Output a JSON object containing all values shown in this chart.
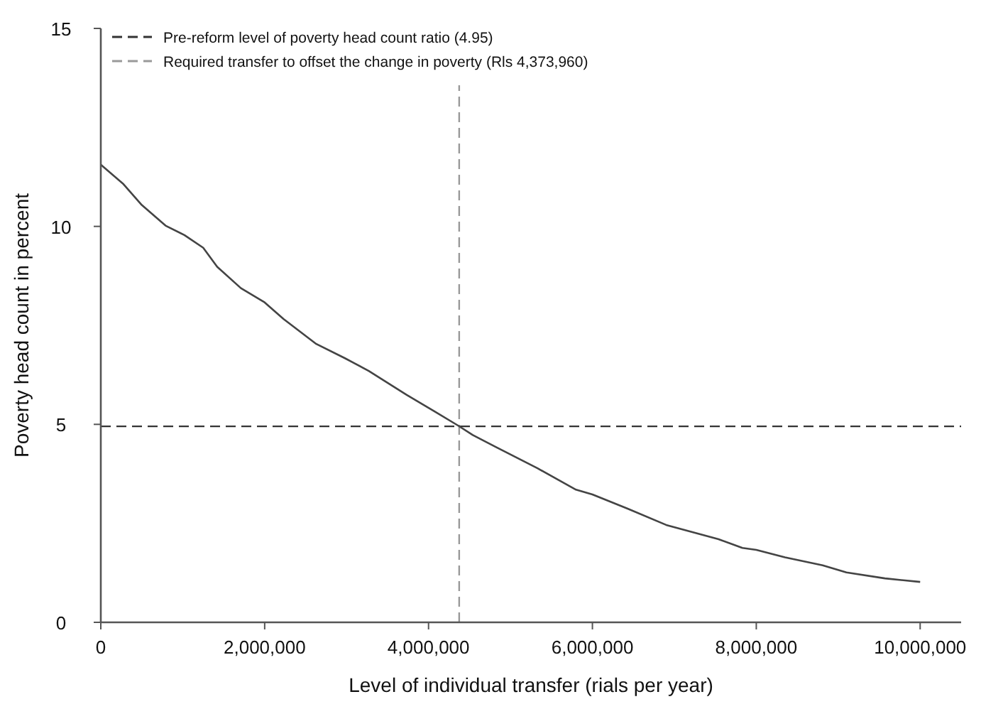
{
  "chart_data": {
    "type": "line",
    "xlabel": "Level of individual transfer (rials per year)",
    "ylabel": "Poverty head count in percent",
    "x": [
      0,
      270000,
      500000,
      790000,
      1020000,
      1250000,
      1420000,
      1710000,
      2000000,
      2230000,
      2630000,
      2980000,
      3270000,
      3730000,
      4070000,
      4360000,
      4540000,
      4820000,
      5330000,
      5800000,
      6000000,
      6430000,
      6900000,
      7540000,
      7830000,
      8000000,
      8350000,
      8810000,
      9100000,
      9570000,
      10000000
    ],
    "series": [
      {
        "color": "#444444",
        "values": [
          11.56,
          11.08,
          10.54,
          10.02,
          9.78,
          9.46,
          8.98,
          8.44,
          8.08,
          7.66,
          7.03,
          6.67,
          6.35,
          5.75,
          5.33,
          4.97,
          4.73,
          4.43,
          3.89,
          3.35,
          3.23,
          2.87,
          2.46,
          2.1,
          1.88,
          1.83,
          1.64,
          1.44,
          1.26,
          1.11,
          1.02
        ]
      }
    ],
    "xlim": [
      0,
      10500000
    ],
    "ylim": [
      0,
      15
    ],
    "xticks": [
      0,
      {
        "value": 2000000,
        "label": "2,000,000"
      },
      {
        "value": 4000000,
        "label": "4,000,000"
      },
      {
        "value": 6000000,
        "label": "6,000,000"
      },
      {
        "value": 8000000,
        "label": "8,000,000"
      },
      {
        "value": 10000000,
        "label": "10,000,000"
      }
    ],
    "yticks": [
      0,
      5,
      10,
      15
    ],
    "ref_lines": [
      {
        "axis": "y",
        "value": 4.95,
        "label": "Pre-reform level of poverty head count ratio (4.95)",
        "color": "#333333",
        "line_style": "dashed"
      },
      {
        "axis": "x",
        "value": 4373960,
        "label": "Required transfer to offset the change in poverty (Rls 4,373,960)",
        "color": "#999999",
        "line_style": "dashed"
      }
    ],
    "legend": "top left",
    "grid": false,
    "marker": "none",
    "line_style": "solid"
  }
}
